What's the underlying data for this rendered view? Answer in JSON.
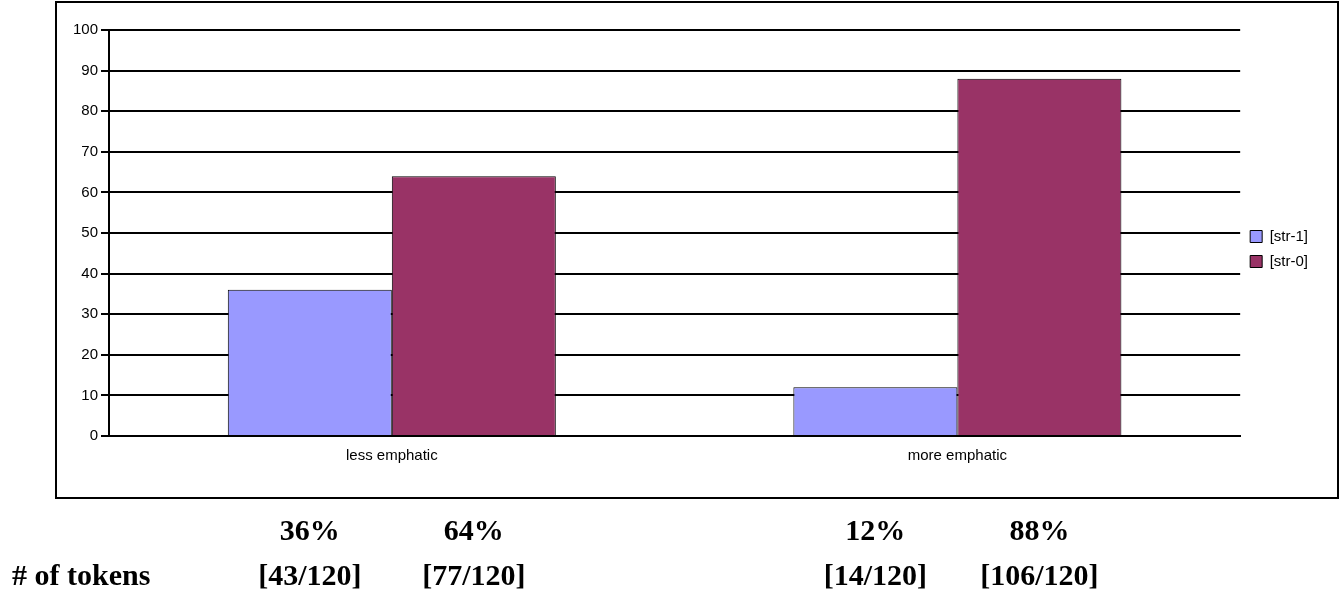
{
  "chart_data": {
    "type": "bar",
    "categories": [
      "less emphatic",
      "more emphatic"
    ],
    "series": [
      {
        "name": "[str-1]",
        "color": "#9999ff",
        "values": [
          36,
          12
        ],
        "value_labels": [
          "36%\n[43/120]",
          "12%\n[14/120]"
        ]
      },
      {
        "name": "[str-0]",
        "color": "#993366",
        "values": [
          64,
          88
        ],
        "value_labels": [
          "64%\n[77/120]",
          "88%\n[106/120]"
        ]
      }
    ],
    "ylim": [
      0,
      100
    ],
    "yticks": [
      0,
      10,
      20,
      30,
      40,
      50,
      60,
      70,
      80,
      90,
      100
    ],
    "grid": "y",
    "legend": "right",
    "annotations": [
      "# of tokens"
    ]
  }
}
